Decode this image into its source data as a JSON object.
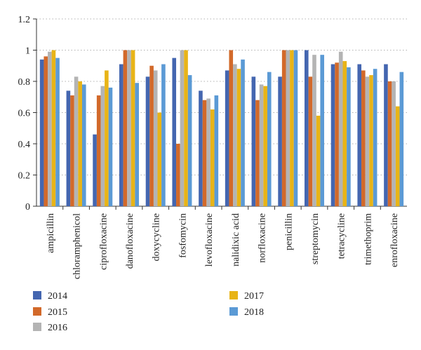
{
  "chart_data": {
    "type": "bar",
    "title": "",
    "xlabel": "",
    "ylabel": "",
    "ylim": [
      0,
      1.2
    ],
    "yticks": [
      "0",
      "0.2",
      "0.4",
      "0.6",
      "0.8",
      "1",
      "1.2"
    ],
    "ytick_values": [
      0,
      0.2,
      0.4,
      0.6,
      0.8,
      1.0,
      1.2
    ],
    "grid": "horizontal dotted",
    "legend_position": "bottom",
    "categories": [
      "ampicillin",
      "chloramphenicol",
      "ciprofloxacine",
      "danofloxacine",
      "doxycycline",
      "fosfomycin",
      "levofloxacine",
      "nalidixic acid",
      "norfloxacine",
      "penicillin",
      "streptomycin",
      "tetracycline",
      "trimethoprim",
      "enrofloxacine"
    ],
    "series": [
      {
        "name": "2014",
        "color": "#4466b0",
        "values": [
          0.94,
          0.74,
          0.46,
          0.91,
          0.83,
          0.95,
          0.74,
          0.87,
          0.83,
          0.83,
          1.0,
          0.91,
          0.91,
          0.91
        ]
      },
      {
        "name": "2015",
        "color": "#d2692a",
        "values": [
          0.96,
          0.71,
          0.71,
          1.0,
          0.9,
          0.4,
          0.68,
          1.0,
          0.68,
          1.0,
          0.83,
          0.92,
          0.87,
          0.8
        ]
      },
      {
        "name": "2016",
        "color": "#b4b4b4",
        "values": [
          0.99,
          0.83,
          0.77,
          1.0,
          0.87,
          1.0,
          0.69,
          0.91,
          0.78,
          1.0,
          0.97,
          0.99,
          0.83,
          0.8
        ]
      },
      {
        "name": "2017",
        "color": "#e8b417",
        "values": [
          1.0,
          0.8,
          0.87,
          1.0,
          0.6,
          1.0,
          0.62,
          0.88,
          0.77,
          1.0,
          0.58,
          0.93,
          0.84,
          0.64
        ]
      },
      {
        "name": "2018",
        "color": "#5b9ad5",
        "values": [
          0.95,
          0.78,
          0.76,
          0.79,
          0.91,
          0.84,
          0.71,
          0.94,
          0.86,
          1.0,
          0.97,
          0.89,
          0.88,
          0.86
        ]
      }
    ]
  }
}
